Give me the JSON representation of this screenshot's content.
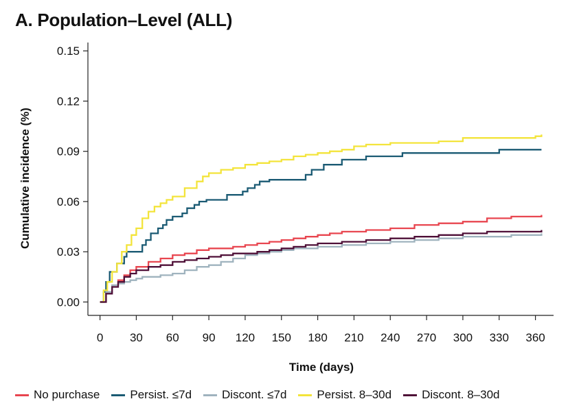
{
  "title": "A. Population–Level (ALL)",
  "chart_data": {
    "type": "line",
    "xlabel": "Time (days)",
    "ylabel": "Cumulative incidence (%)",
    "xlim": [
      -10,
      375
    ],
    "ylim": [
      -0.008,
      0.155
    ],
    "x_ticks": [
      0,
      30,
      60,
      90,
      120,
      150,
      180,
      210,
      240,
      270,
      300,
      330,
      360
    ],
    "x_tick_labels": [
      "0",
      "30",
      "60",
      "90",
      "120",
      "150",
      "180",
      "210",
      "240",
      "270",
      "300",
      "330",
      "360"
    ],
    "y_ticks": [
      0.0,
      0.03,
      0.06,
      0.09,
      0.12,
      0.15
    ],
    "y_tick_labels": [
      "0.00",
      "0.03",
      "0.06",
      "0.09",
      "0.12",
      "0.15"
    ],
    "grid": false,
    "legend_position": "bottom",
    "series": [
      {
        "name": "No purchase",
        "color": "#e8454f",
        "step": true,
        "x": [
          0,
          5,
          10,
          15,
          20,
          25,
          30,
          40,
          50,
          60,
          70,
          80,
          90,
          100,
          110,
          120,
          130,
          140,
          150,
          160,
          170,
          180,
          190,
          200,
          210,
          220,
          240,
          260,
          280,
          300,
          320,
          340,
          365
        ],
        "y": [
          0,
          0.006,
          0.01,
          0.013,
          0.016,
          0.019,
          0.021,
          0.024,
          0.026,
          0.028,
          0.029,
          0.031,
          0.032,
          0.032,
          0.033,
          0.034,
          0.035,
          0.036,
          0.037,
          0.038,
          0.039,
          0.04,
          0.041,
          0.042,
          0.042,
          0.043,
          0.044,
          0.046,
          0.047,
          0.048,
          0.05,
          0.051,
          0.052
        ]
      },
      {
        "name": "Persist. ≤7d",
        "color": "#1a5a73",
        "step": true,
        "x": [
          0,
          3,
          5,
          8,
          14,
          20,
          22,
          35,
          38,
          42,
          48,
          52,
          55,
          60,
          68,
          72,
          78,
          82,
          85,
          88,
          98,
          105,
          108,
          118,
          122,
          128,
          132,
          140,
          142,
          170,
          175,
          185,
          200,
          210,
          220,
          235,
          250,
          260,
          270,
          320,
          330,
          365
        ],
        "y": [
          0,
          0.006,
          0.012,
          0.018,
          0.023,
          0.027,
          0.03,
          0.034,
          0.037,
          0.041,
          0.044,
          0.046,
          0.049,
          0.051,
          0.053,
          0.056,
          0.058,
          0.06,
          0.06,
          0.061,
          0.061,
          0.064,
          0.064,
          0.066,
          0.068,
          0.07,
          0.072,
          0.073,
          0.073,
          0.076,
          0.079,
          0.082,
          0.085,
          0.085,
          0.087,
          0.087,
          0.089,
          0.089,
          0.089,
          0.089,
          0.091,
          0.091
        ]
      },
      {
        "name": "Discont. ≤7d",
        "color": "#9fb3be",
        "step": true,
        "x": [
          0,
          5,
          10,
          15,
          20,
          25,
          30,
          35,
          40,
          50,
          60,
          70,
          80,
          90,
          100,
          110,
          120,
          130,
          140,
          150,
          160,
          180,
          200,
          220,
          240,
          260,
          280,
          300,
          320,
          340,
          365
        ],
        "y": [
          0,
          0.006,
          0.01,
          0.011,
          0.012,
          0.013,
          0.014,
          0.015,
          0.015,
          0.016,
          0.017,
          0.019,
          0.021,
          0.022,
          0.024,
          0.026,
          0.028,
          0.029,
          0.03,
          0.031,
          0.032,
          0.033,
          0.034,
          0.035,
          0.036,
          0.037,
          0.038,
          0.039,
          0.039,
          0.04,
          0.041
        ]
      },
      {
        "name": "Persist. 8–30d",
        "color": "#f3e43a",
        "step": true,
        "x": [
          0,
          3,
          6,
          10,
          14,
          18,
          22,
          26,
          30,
          35,
          40,
          45,
          50,
          55,
          60,
          70,
          80,
          85,
          90,
          100,
          110,
          120,
          130,
          140,
          150,
          160,
          170,
          180,
          190,
          200,
          210,
          220,
          240,
          280,
          300,
          360,
          365
        ],
        "y": [
          0,
          0.007,
          0.012,
          0.018,
          0.023,
          0.03,
          0.034,
          0.04,
          0.044,
          0.05,
          0.054,
          0.057,
          0.059,
          0.061,
          0.063,
          0.068,
          0.072,
          0.075,
          0.077,
          0.079,
          0.08,
          0.082,
          0.083,
          0.084,
          0.085,
          0.087,
          0.088,
          0.089,
          0.09,
          0.091,
          0.093,
          0.094,
          0.095,
          0.096,
          0.098,
          0.099,
          0.1
        ]
      },
      {
        "name": "Discont. 8–30d",
        "color": "#4e0f37",
        "step": true,
        "x": [
          0,
          5,
          10,
          15,
          20,
          25,
          30,
          40,
          50,
          60,
          70,
          80,
          90,
          100,
          110,
          120,
          130,
          140,
          150,
          160,
          170,
          180,
          200,
          220,
          240,
          260,
          280,
          300,
          320,
          340,
          365
        ],
        "y": [
          0,
          0.005,
          0.009,
          0.012,
          0.015,
          0.017,
          0.019,
          0.021,
          0.022,
          0.024,
          0.025,
          0.026,
          0.027,
          0.028,
          0.029,
          0.029,
          0.03,
          0.031,
          0.032,
          0.033,
          0.034,
          0.035,
          0.036,
          0.037,
          0.038,
          0.039,
          0.04,
          0.041,
          0.042,
          0.042,
          0.043
        ]
      }
    ]
  }
}
